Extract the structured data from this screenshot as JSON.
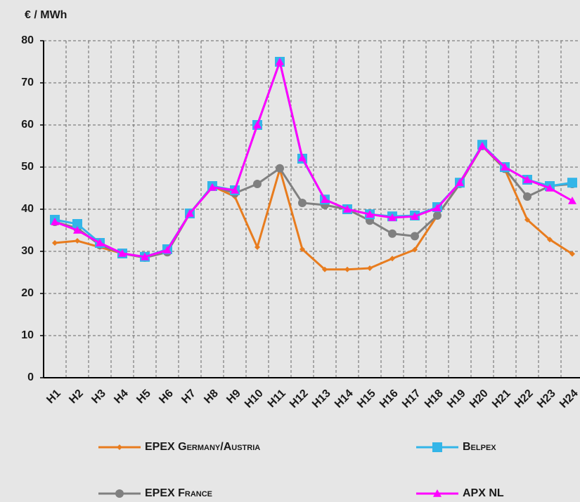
{
  "chart_data": {
    "type": "line",
    "y_label": "€ / MWh",
    "categories": [
      "H1",
      "H2",
      "H3",
      "H4",
      "H5",
      "H6",
      "H7",
      "H8",
      "H9",
      "H10",
      "H11",
      "H12",
      "H13",
      "H14",
      "H15",
      "H16",
      "H17",
      "H18",
      "H19",
      "H20",
      "H21",
      "H22",
      "H23",
      "H24"
    ],
    "series": [
      {
        "name": "EPEX Germany/Austria",
        "color": "#e87c1e",
        "marker": "diamond",
        "values": [
          32,
          32.5,
          31,
          29.5,
          28.5,
          30,
          39,
          45.5,
          43,
          31,
          49.5,
          30.5,
          25.7,
          25.7,
          26,
          28.3,
          30.4,
          38.5,
          46,
          55,
          49.5,
          37.5,
          32.8,
          29.4
        ]
      },
      {
        "name": "EPEX France",
        "color": "#808080",
        "marker": "circle",
        "values": [
          37,
          35.5,
          31.5,
          29.5,
          28.5,
          29.8,
          39,
          45.5,
          43.8,
          46,
          49.7,
          41.5,
          41,
          40,
          37.3,
          34.2,
          33.6,
          38.5,
          46,
          55,
          49.6,
          43,
          45.5,
          46
        ]
      },
      {
        "name": "Belpex",
        "color": "#33b5e8",
        "marker": "square",
        "values": [
          37.5,
          36.5,
          32,
          29.5,
          28.7,
          30.5,
          39,
          45.5,
          44.5,
          60,
          75,
          52,
          42.3,
          40,
          38.8,
          38.3,
          38.5,
          40.5,
          46.3,
          55.3,
          50,
          47,
          45.5,
          46.3
        ]
      },
      {
        "name": "APX NL",
        "color": "#ff00ff",
        "marker": "triangle",
        "values": [
          37,
          35,
          32,
          29.5,
          28.7,
          30.3,
          39,
          45.2,
          44.5,
          60,
          75,
          52.2,
          42.3,
          40,
          38.8,
          38,
          38.3,
          40.3,
          46.3,
          55,
          50,
          47,
          45,
          42
        ]
      }
    ],
    "ylim": [
      0,
      80
    ],
    "yticks": [
      0,
      10,
      20,
      30,
      40,
      50,
      60,
      70,
      80
    ],
    "grid": true,
    "legend": "bottom"
  }
}
